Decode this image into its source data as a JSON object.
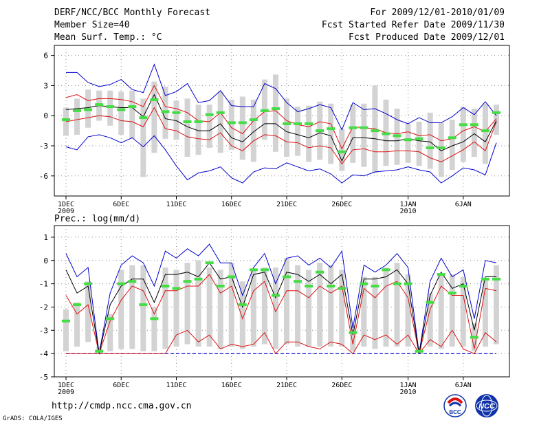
{
  "header": {
    "title": "DERF/NCC/BCC Monthly Forecast",
    "member_size": "Member Size=40",
    "variable": "Mean Surf. Temp.: °C",
    "period": "For 2009/12/01-2010/01/09",
    "started": "Fcst Started Refer Date 2009/11/30",
    "produced": "Fcst Produced Date 2009/12/01"
  },
  "footer": {
    "url": "http://cmdp.ncc.cma.gov.cn",
    "credit": "GrADS: COLA/IGES",
    "logo_left_text": "BCC",
    "logo_right_text": "NCC"
  },
  "colors": {
    "envelope": "#0000cc",
    "spread": "#dd1111",
    "mean": "#000000",
    "box": "#d3d3d3",
    "marker": "#44dd44",
    "baseline": "#0000cc"
  },
  "x_ticks": [
    {
      "day": 1,
      "label": "1DEC",
      "sub": "2009"
    },
    {
      "day": 6,
      "label": "6DEC",
      "sub": ""
    },
    {
      "day": 11,
      "label": "11DEC",
      "sub": ""
    },
    {
      "day": 16,
      "label": "16DEC",
      "sub": ""
    },
    {
      "day": 21,
      "label": "21DEC",
      "sub": ""
    },
    {
      "day": 26,
      "label": "26DEC",
      "sub": ""
    },
    {
      "day": 32,
      "label": "1JAN",
      "sub": "2010"
    },
    {
      "day": 37,
      "label": "6JAN",
      "sub": ""
    }
  ],
  "chart_data": [
    {
      "type": "line",
      "title": "Mean Surf. Temp.: °C",
      "ylabel": "°C",
      "ylim": [
        -8,
        7
      ],
      "yticks": [
        -6,
        -3,
        0,
        3,
        6
      ],
      "grid": true,
      "x": [
        1,
        2,
        3,
        4,
        5,
        6,
        7,
        8,
        9,
        10,
        11,
        12,
        13,
        14,
        15,
        16,
        17,
        18,
        19,
        20,
        21,
        22,
        23,
        24,
        25,
        26,
        27,
        28,
        29,
        30,
        31,
        32,
        33,
        34,
        35,
        36,
        37,
        38,
        39,
        40
      ],
      "series": [
        {
          "name": "max",
          "values": [
            4.3,
            4.3,
            3.3,
            2.9,
            3.1,
            3.6,
            2.6,
            2.3,
            5.1,
            2.0,
            2.4,
            3.2,
            1.3,
            1.5,
            2.5,
            1.0,
            0.9,
            0.9,
            3.2,
            2.7,
            1.3,
            0.4,
            0.7,
            1.1,
            0.8,
            -1.4,
            1.3,
            0.6,
            0.7,
            0.2,
            -0.4,
            -0.8,
            -0.2,
            -0.7,
            -0.7,
            -0.1,
            0.8,
            0.1,
            1.4,
            0.0
          ]
        },
        {
          "name": "upper",
          "values": [
            1.8,
            2.1,
            1.5,
            1.7,
            1.7,
            1.6,
            1.4,
            0.9,
            3.0,
            0.9,
            0.7,
            0.3,
            -0.5,
            -0.6,
            0.3,
            -1.2,
            -1.8,
            -0.5,
            0.4,
            0.5,
            -0.5,
            -0.9,
            -1.1,
            -0.6,
            -0.8,
            -3.3,
            -1.1,
            -1.2,
            -1.3,
            -1.7,
            -1.8,
            -1.6,
            -2.0,
            -1.9,
            -2.5,
            -2.3,
            -1.5,
            -1.1,
            -1.6,
            -0.3
          ]
        },
        {
          "name": "mean",
          "values": [
            0.6,
            0.7,
            0.8,
            1.0,
            0.9,
            0.8,
            0.8,
            -0.1,
            2.1,
            -0.3,
            -0.5,
            -1.1,
            -1.5,
            -1.5,
            -0.8,
            -2.2,
            -2.6,
            -1.6,
            -0.8,
            -0.8,
            -1.6,
            -1.9,
            -2.2,
            -1.7,
            -2.0,
            -4.5,
            -2.2,
            -2.2,
            -2.3,
            -2.5,
            -2.5,
            -2.3,
            -2.5,
            -2.6,
            -3.5,
            -3.0,
            -2.6,
            -1.8,
            -2.6,
            -0.5
          ]
        },
        {
          "name": "lower",
          "values": [
            -0.6,
            -0.4,
            -0.2,
            0.0,
            -0.1,
            -0.5,
            -0.6,
            -1.1,
            0.8,
            -1.3,
            -1.5,
            -2.1,
            -2.3,
            -2.4,
            -1.7,
            -3.0,
            -3.5,
            -2.5,
            -1.9,
            -2.0,
            -2.6,
            -2.7,
            -3.2,
            -3.0,
            -3.2,
            -4.8,
            -3.4,
            -3.3,
            -3.6,
            -3.6,
            -3.5,
            -3.5,
            -3.6,
            -4.2,
            -4.6,
            -4.0,
            -3.4,
            -2.6,
            -3.5,
            -0.6
          ]
        },
        {
          "name": "min",
          "values": [
            -3.1,
            -3.4,
            -2.1,
            -1.9,
            -2.2,
            -2.7,
            -2.2,
            -3.1,
            -2.0,
            -3.4,
            -5.0,
            -6.4,
            -5.7,
            -5.5,
            -5.1,
            -6.2,
            -6.7,
            -5.6,
            -5.2,
            -5.3,
            -4.7,
            -5.1,
            -5.5,
            -5.3,
            -5.8,
            -6.7,
            -5.9,
            -6.0,
            -5.6,
            -5.5,
            -5.4,
            -5.1,
            -5.4,
            -5.6,
            -6.7,
            -6.0,
            -5.2,
            -5.4,
            -5.9,
            -2.7
          ]
        },
        {
          "name": "box_high",
          "values": [
            0.8,
            1.7,
            2.6,
            2.5,
            2.5,
            2.4,
            2.5,
            1.7,
            3.4,
            2.9,
            1.5,
            1.7,
            1.1,
            1.1,
            2.4,
            1.6,
            1.9,
            1.6,
            3.6,
            4.1,
            1.7,
            0.9,
            1.0,
            1.4,
            1.2,
            -1.3,
            1.1,
            1.2,
            3.0,
            1.6,
            0.7,
            -0.8,
            -0.6,
            0.3,
            -0.7,
            -0.4,
            0.9,
            0.7,
            1.2,
            1.1
          ]
        },
        {
          "name": "box_low",
          "values": [
            -2.0,
            -1.9,
            -1.2,
            -0.5,
            -1.0,
            -1.9,
            -2.3,
            -6.1,
            -3.7,
            -2.3,
            -2.4,
            -4.1,
            -3.9,
            -3.2,
            -3.7,
            -3.4,
            -4.4,
            -4.6,
            -2.4,
            -3.6,
            -4.1,
            -4.0,
            -4.6,
            -4.4,
            -4.8,
            -5.5,
            -4.7,
            -5.1,
            -5.7,
            -5.0,
            -4.9,
            -4.7,
            -5.0,
            -5.3,
            -6.1,
            -5.4,
            -4.6,
            -4.1,
            -4.8,
            -1.9
          ]
        },
        {
          "name": "marker",
          "values": [
            -0.4,
            0.5,
            0.6,
            1.1,
            0.9,
            0.6,
            0.9,
            -0.2,
            1.6,
            0.4,
            0.3,
            -0.6,
            -0.6,
            0.1,
            0.3,
            -0.7,
            -0.7,
            -0.4,
            0.5,
            0.7,
            -0.8,
            -0.8,
            -0.8,
            -1.5,
            -1.3,
            -3.6,
            -1.2,
            -1.2,
            -1.5,
            -1.8,
            -2.0,
            -2.4,
            -2.3,
            -3.2,
            -3.2,
            -2.2,
            -0.9,
            -0.9,
            -1.5,
            0.3
          ]
        }
      ]
    },
    {
      "type": "line",
      "title": "Prec.: log(mm/d)",
      "ylabel": "log(mm/d)",
      "ylim": [
        -5,
        1.5
      ],
      "yticks": [
        -5,
        -4,
        -3,
        -2,
        -1,
        0,
        1
      ],
      "grid": true,
      "baseline": -4,
      "x": [
        1,
        2,
        3,
        4,
        5,
        6,
        7,
        8,
        9,
        10,
        11,
        12,
        13,
        14,
        15,
        16,
        17,
        18,
        19,
        20,
        21,
        22,
        23,
        24,
        25,
        26,
        27,
        28,
        29,
        30,
        31,
        32,
        33,
        34,
        35,
        36,
        37,
        38,
        39,
        40
      ],
      "series": [
        {
          "name": "max",
          "values": [
            0.3,
            -0.7,
            -0.3,
            -4.0,
            -1.4,
            -0.2,
            0.2,
            -0.1,
            -1.1,
            0.4,
            0.1,
            0.5,
            0.2,
            0.7,
            -0.1,
            -0.1,
            -1.5,
            -0.3,
            0.3,
            -1.0,
            0.1,
            0.2,
            -0.2,
            0.1,
            -0.3,
            0.4,
            -2.9,
            -0.2,
            -0.5,
            -0.2,
            0.3,
            -0.3,
            -4.0,
            -0.9,
            0.1,
            -0.7,
            -0.4,
            -2.5,
            0.0,
            -0.1
          ]
        },
        {
          "name": "mean",
          "values": [
            -0.4,
            -1.4,
            -1.1,
            -4.0,
            -1.9,
            -1.1,
            -0.8,
            -0.8,
            -1.8,
            -0.6,
            -0.6,
            -0.5,
            -0.7,
            -0.1,
            -0.8,
            -0.7,
            -2.0,
            -0.6,
            -0.5,
            -1.6,
            -0.5,
            -0.6,
            -0.9,
            -0.6,
            -1.0,
            -0.6,
            -3.2,
            -0.8,
            -0.8,
            -0.7,
            -0.4,
            -1.0,
            -4.0,
            -1.5,
            -0.5,
            -1.2,
            -1.0,
            -3.0,
            -0.7,
            -0.7
          ]
        },
        {
          "name": "upper",
          "values": [
            -1.5,
            -2.3,
            -1.9,
            -4.0,
            -2.6,
            -1.7,
            -1.1,
            -1.3,
            -2.3,
            -1.3,
            -1.3,
            -1.1,
            -1.1,
            -0.6,
            -1.4,
            -1.1,
            -2.5,
            -1.3,
            -0.9,
            -2.2,
            -1.3,
            -1.3,
            -1.6,
            -1.1,
            -1.4,
            -1.1,
            -3.6,
            -1.2,
            -1.6,
            -1.1,
            -0.9,
            -1.6,
            -4.0,
            -2.1,
            -1.1,
            -1.5,
            -1.5,
            -3.8,
            -1.2,
            -1.3
          ]
        },
        {
          "name": "lower",
          "values": [
            -4.0,
            -4.0,
            -4.0,
            -4.0,
            -4.0,
            -4.0,
            -4.0,
            -4.0,
            -4.0,
            -4.0,
            -3.2,
            -3.0,
            -3.5,
            -3.2,
            -3.8,
            -3.6,
            -3.7,
            -3.6,
            -3.1,
            -4.0,
            -3.5,
            -3.5,
            -3.7,
            -3.8,
            -3.5,
            -3.6,
            -4.0,
            -3.2,
            -3.4,
            -3.2,
            -3.6,
            -3.2,
            -4.0,
            -3.4,
            -3.7,
            -3.0,
            -3.8,
            -4.0,
            -3.1,
            -3.5
          ]
        },
        {
          "name": "box_high",
          "values": [
            -2.1,
            -1.8,
            -0.9,
            -3.7,
            -2.3,
            -0.4,
            -0.2,
            -0.2,
            -2.0,
            -0.3,
            -0.4,
            -0.1,
            0.0,
            -0.3,
            -0.4,
            -0.1,
            -0.9,
            -0.4,
            -0.3,
            -0.3,
            0.1,
            -0.2,
            -0.4,
            -0.1,
            -0.2,
            -0.4,
            -2.8,
            -0.7,
            -0.7,
            -0.3,
            -0.1,
            -0.6,
            -3.7,
            -1.4,
            -0.6,
            -0.6,
            -0.7,
            -2.7,
            -0.8,
            -0.2
          ]
        },
        {
          "name": "box_low",
          "values": [
            -3.9,
            -3.7,
            -3.5,
            -3.9,
            -3.9,
            -3.8,
            -3.8,
            -3.9,
            -3.9,
            -3.8,
            -3.7,
            -3.6,
            -3.7,
            -3.7,
            -3.8,
            -3.7,
            -3.8,
            -3.7,
            -3.6,
            -3.8,
            -3.6,
            -3.7,
            -3.7,
            -3.7,
            -3.7,
            -3.7,
            -3.9,
            -3.7,
            -3.8,
            -3.7,
            -3.7,
            -3.7,
            -3.9,
            -3.7,
            -3.8,
            -3.7,
            -3.7,
            -3.9,
            -3.7,
            -3.6
          ]
        },
        {
          "name": "marker",
          "values": [
            -2.6,
            -1.9,
            -1.0,
            -3.9,
            -2.5,
            -1.0,
            -0.9,
            -1.9,
            -2.5,
            -1.1,
            -1.2,
            -0.9,
            -0.8,
            -0.1,
            -1.1,
            -0.7,
            -1.9,
            -0.4,
            -0.4,
            -1.5,
            -0.7,
            -0.9,
            -1.1,
            -0.5,
            -1.1,
            -1.2,
            -3.1,
            -1.0,
            -1.1,
            -0.4,
            -1.0,
            -1.0,
            -3.9,
            -1.8,
            -0.6,
            -1.4,
            -1.1,
            -3.3,
            -0.8,
            -0.8
          ]
        }
      ]
    }
  ]
}
